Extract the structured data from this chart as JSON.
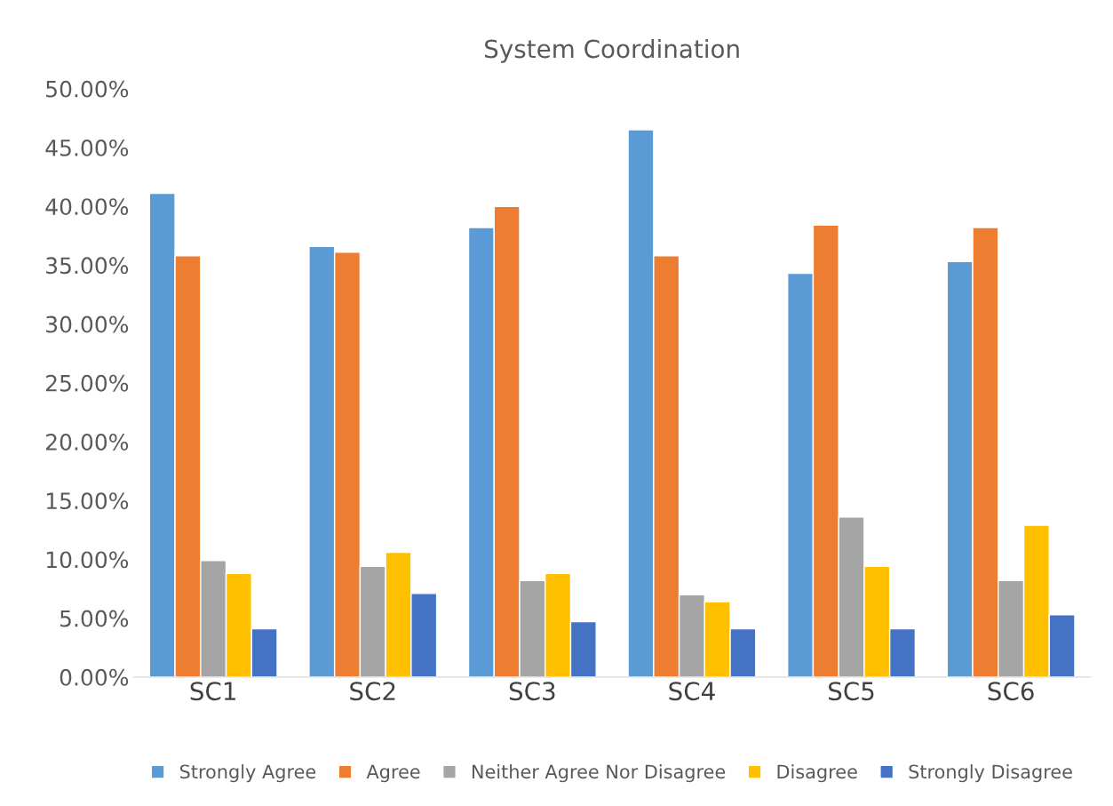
{
  "chart_data": {
    "type": "bar",
    "title": "System Coordination",
    "categories": [
      "SC1",
      "SC2",
      "SC3",
      "SC4",
      "SC5",
      "SC6"
    ],
    "series": [
      {
        "name": "Strongly Agree",
        "color": "#5b9bd5",
        "values": [
          41.1,
          36.6,
          38.2,
          46.5,
          34.3,
          35.3
        ]
      },
      {
        "name": "Agree",
        "color": "#ed7d31",
        "values": [
          35.8,
          36.1,
          40.0,
          35.8,
          38.4,
          38.2
        ]
      },
      {
        "name": "Neither Agree Nor Disagree",
        "color": "#a5a5a5",
        "values": [
          9.9,
          9.4,
          8.2,
          7.0,
          13.6,
          8.2
        ]
      },
      {
        "name": "Disagree",
        "color": "#ffc000",
        "values": [
          8.8,
          10.6,
          8.8,
          6.4,
          9.4,
          12.9
        ]
      },
      {
        "name": "Strongly Disagree",
        "color": "#4472c4",
        "values": [
          4.1,
          7.1,
          4.7,
          4.1,
          4.1,
          5.3
        ]
      }
    ],
    "ylim": [
      0,
      50
    ],
    "yticks": [
      {
        "value": 0,
        "label": "0.00%"
      },
      {
        "value": 5,
        "label": "5.00%"
      },
      {
        "value": 10,
        "label": "10.00%"
      },
      {
        "value": 15,
        "label": "15.00%"
      },
      {
        "value": 20,
        "label": "20.00%"
      },
      {
        "value": 25,
        "label": "25.00%"
      },
      {
        "value": 30,
        "label": "30.00%"
      },
      {
        "value": 35,
        "label": "35.00%"
      },
      {
        "value": 40,
        "label": "40.00%"
      },
      {
        "value": 45,
        "label": "45.00%"
      },
      {
        "value": 50,
        "label": "50.00%"
      }
    ],
    "grid": false,
    "legend": "bottom"
  }
}
